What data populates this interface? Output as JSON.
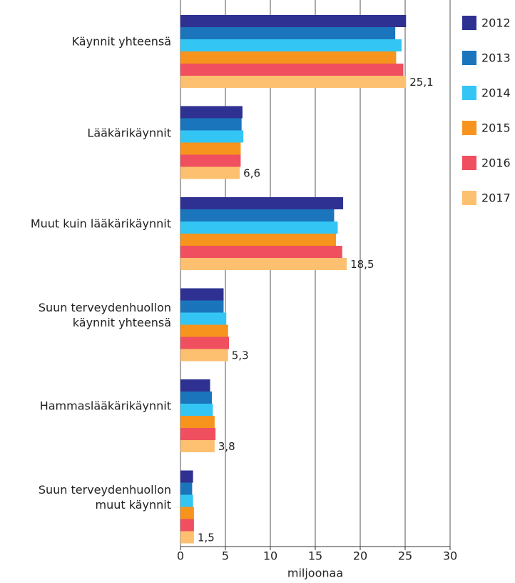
{
  "chart_data": {
    "type": "bar",
    "orientation": "horizontal",
    "categories": [
      "Käynnit yhteensä",
      "Lääkärikäynnit",
      "Muut kuin lääkärikäynnit",
      "Suun terveydenhuollon\nkäynnit yhteensä",
      "Hammaslääkärikäynnit",
      "Suun terveydenhuollon\nmuut käynnit"
    ],
    "series": [
      {
        "name": "2012",
        "color": "#2e3192",
        "values": [
          25.1,
          6.9,
          18.1,
          4.8,
          3.3,
          1.4
        ]
      },
      {
        "name": "2013",
        "color": "#1a75bc",
        "values": [
          23.9,
          6.8,
          17.1,
          4.8,
          3.5,
          1.3
        ]
      },
      {
        "name": "2014",
        "color": "#33c6f4",
        "values": [
          24.6,
          7.0,
          17.5,
          5.1,
          3.6,
          1.4
        ]
      },
      {
        "name": "2015",
        "color": "#f7941d",
        "values": [
          24.0,
          6.7,
          17.3,
          5.3,
          3.8,
          1.5
        ]
      },
      {
        "name": "2016",
        "color": "#ef4f5f",
        "values": [
          24.8,
          6.7,
          18.0,
          5.4,
          3.9,
          1.5
        ]
      },
      {
        "name": "2017",
        "color": "#fdc070",
        "values": [
          25.1,
          6.6,
          18.5,
          5.3,
          3.8,
          1.5
        ],
        "value_labels": [
          "25,1",
          "6,6",
          "18,5",
          "5,3",
          "3,8",
          "1,5"
        ]
      }
    ],
    "xlabel": "miljoonaa",
    "xlim": [
      0,
      30
    ],
    "xticks": [
      0,
      5,
      10,
      15,
      20,
      25,
      30
    ],
    "grid": true,
    "legend": "right"
  }
}
